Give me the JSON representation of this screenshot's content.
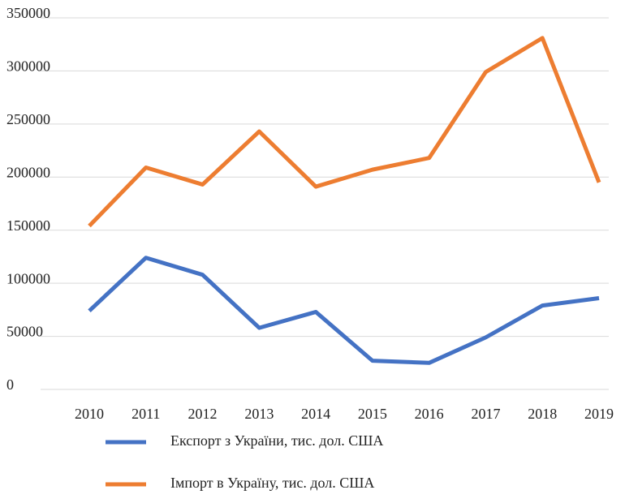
{
  "chart_data": {
    "type": "line",
    "categories": [
      "2010",
      "2011",
      "2012",
      "2013",
      "2014",
      "2015",
      "2016",
      "2017",
      "2018",
      "2019"
    ],
    "series": [
      {
        "name": "Експорт з України, тис. дол. США",
        "color": "#4472c4",
        "values": [
          74000,
          124000,
          108000,
          58000,
          73000,
          27000,
          25000,
          49000,
          79000,
          86000
        ]
      },
      {
        "name": "Імпорт в Україну, тис. дол. США",
        "color": "#ed7d31",
        "values": [
          154000,
          209000,
          193000,
          243000,
          191000,
          207000,
          218000,
          299000,
          331000,
          195000
        ]
      }
    ],
    "ylim": [
      0,
      350000
    ],
    "yticks": [
      0,
      50000,
      100000,
      150000,
      200000,
      250000,
      300000,
      350000
    ],
    "grid": true
  }
}
